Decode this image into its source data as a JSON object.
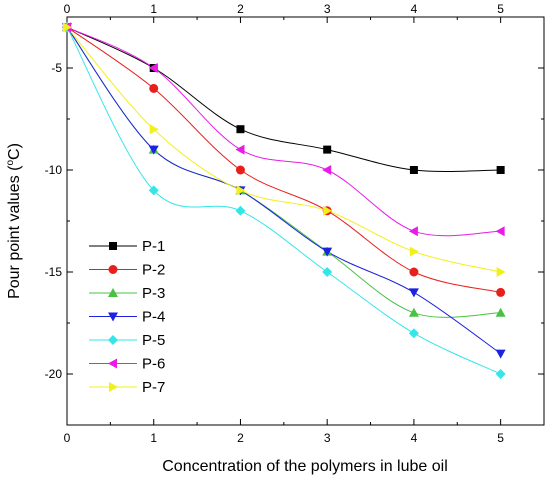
{
  "chart_data": {
    "type": "scatter",
    "xlabel": "Concentration of the polymers in lube oil",
    "ylabel": "Pour point values (",
    "ylabel_sup": "o",
    "ylabel_unit": "C)",
    "xlim": [
      0,
      5.5
    ],
    "ylim": [
      -22.5,
      -2.5
    ],
    "x_ticks": [
      0,
      1,
      2,
      3,
      4,
      5
    ],
    "x_tick_labels": [
      "0",
      "1",
      "2",
      "3",
      "4",
      "5"
    ],
    "y_ticks": [
      -5,
      -10,
      -15,
      -20
    ],
    "y_tick_labels": [
      "-5",
      "-10",
      "-15",
      "-20"
    ],
    "grid": false,
    "legend_position": "lower-left",
    "x": [
      0,
      1,
      2,
      3,
      4,
      5
    ],
    "series": [
      {
        "name": "P-1",
        "values": [
          -3,
          -5,
          -8,
          -9,
          -10,
          -10
        ],
        "color": "#000000",
        "marker": "square"
      },
      {
        "name": "P-2",
        "values": [
          -3,
          -6,
          -10,
          -12,
          -15,
          -16
        ],
        "color": "#e8201c",
        "marker": "circle"
      },
      {
        "name": "P-3",
        "values": [
          -3,
          -9,
          -11,
          -14,
          -17,
          -17
        ],
        "color": "#49c244",
        "marker": "triangle-up"
      },
      {
        "name": "P-4",
        "values": [
          -3,
          -9,
          -11,
          -14,
          -16,
          -19
        ],
        "color": "#1d22e0",
        "marker": "triangle-down"
      },
      {
        "name": "P-5",
        "values": [
          -3,
          -11,
          -12,
          -15,
          -18,
          -20
        ],
        "color": "#35e6e8",
        "marker": "diamond"
      },
      {
        "name": "P-6",
        "values": [
          -3,
          -5,
          -9,
          -10,
          -13,
          -13
        ],
        "color": "#e81ce6",
        "marker": "triangle-left"
      },
      {
        "name": "P-7",
        "values": [
          -3,
          -8,
          -11,
          -12,
          -14,
          -15
        ],
        "color": "#f2f01a",
        "marker": "triangle-right"
      }
    ]
  }
}
